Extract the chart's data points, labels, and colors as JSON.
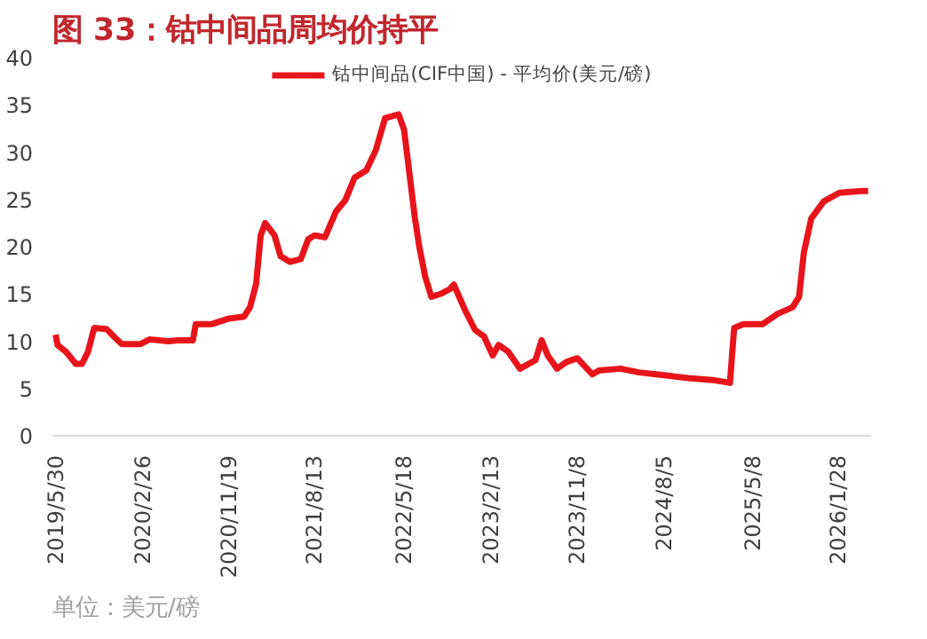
{
  "chart_data": {
    "type": "line",
    "title": "图 33：钴中间品周均价持平",
    "annotations": [
      "单位：美元/磅"
    ],
    "x": [
      "2019-05-30",
      "2019-06-05",
      "2019-07-01",
      "2019-08-01",
      "2019-08-20",
      "2019-09-08",
      "2019-09-27",
      "2019-11-04",
      "2019-12-03",
      "2019-12-22",
      "2020-02-18",
      "2020-03-18",
      "2020-05-14",
      "2020-06-12",
      "2020-07-30",
      "2020-08-08",
      "2020-09-25",
      "2020-11-19",
      "2021-01-05",
      "2021-01-24",
      "2021-02-12",
      "2021-02-26",
      "2021-03-12",
      "2021-04-10",
      "2021-04-29",
      "2021-05-28",
      "2021-07-01",
      "2021-07-24",
      "2021-08-13",
      "2021-09-14",
      "2021-10-18",
      "2021-11-16",
      "2021-12-15",
      "2022-01-21",
      "2022-02-19",
      "2022-03-20",
      "2022-05-01",
      "2022-05-18",
      "2022-06-21",
      "2022-07-04",
      "2022-07-23",
      "2022-08-11",
      "2022-09-08",
      "2022-10-07",
      "2022-10-20",
      "2022-11-25",
      "2022-12-25",
      "2023-01-22",
      "2023-02-18",
      "2023-03-08",
      "2023-04-07",
      "2023-05-14",
      "2023-07-01",
      "2023-07-20",
      "2023-08-08",
      "2023-09-06",
      "2023-10-05",
      "2023-11-08",
      "2023-12-25",
      "2024-01-14",
      "2024-03-21",
      "2024-05-18",
      "2024-08-05",
      "2024-10-18",
      "2025-01-02",
      "2025-02-25",
      "2025-03-10",
      "2025-04-08",
      "2025-06-06",
      "2025-07-23",
      "2025-09-08",
      "2025-09-28",
      "2025-10-13",
      "2025-11-05",
      "2025-12-14",
      "2026-01-31",
      "2026-04-08",
      "2026-05-01"
    ],
    "series": [
      {
        "name": "钴中间品(CIF中国) - 平均价(美元/磅)",
        "color": "#e8141b",
        "values": [
          10.7,
          9.6,
          8.9,
          7.6,
          7.6,
          8.9,
          11.4,
          11.3,
          10.3,
          9.7,
          9.7,
          10.2,
          10.0,
          10.1,
          10.1,
          11.8,
          11.8,
          12.4,
          12.6,
          13.6,
          16.1,
          21.2,
          22.5,
          21.2,
          19.0,
          18.4,
          18.7,
          20.8,
          21.2,
          21.0,
          23.7,
          24.9,
          27.3,
          28.1,
          30.2,
          33.6,
          34.0,
          32.4,
          23.0,
          20.1,
          16.8,
          14.7,
          15.0,
          15.5,
          16.0,
          13.2,
          11.2,
          10.5,
          8.5,
          9.6,
          8.9,
          7.1,
          8.0,
          10.1,
          8.5,
          7.1,
          7.8,
          8.2,
          6.5,
          6.9,
          7.1,
          6.7,
          6.4,
          6.1,
          5.9,
          5.6,
          11.4,
          11.8,
          11.8,
          12.9,
          13.6,
          14.7,
          19.4,
          23.0,
          24.8,
          25.7,
          25.9,
          25.9
        ]
      }
    ],
    "xlim": [
      "2019-05-20",
      "2026-05-10"
    ],
    "xticks": [
      {
        "value": "2019-05-30",
        "label": "2019/5/30"
      },
      {
        "value": "2020-02-26",
        "label": "2020/2/26"
      },
      {
        "value": "2020-11-19",
        "label": "2020/11/19"
      },
      {
        "value": "2021-08-13",
        "label": "2021/8/13"
      },
      {
        "value": "2022-05-18",
        "label": "2022/5/18"
      },
      {
        "value": "2023-02-13",
        "label": "2023/2/13"
      },
      {
        "value": "2023-11-08",
        "label": "2023/11/8"
      },
      {
        "value": "2024-08-05",
        "label": "2024/8/5"
      },
      {
        "value": "2025-05-08",
        "label": "2025/5/8"
      },
      {
        "value": "2026-01-28",
        "label": "2026/1/28"
      }
    ],
    "ylim": [
      0,
      40
    ],
    "yticks": [
      0,
      5,
      10,
      15,
      20,
      25,
      30,
      35,
      40
    ],
    "grid": false,
    "legend": "top",
    "marker": "none",
    "line_style": "solid"
  }
}
